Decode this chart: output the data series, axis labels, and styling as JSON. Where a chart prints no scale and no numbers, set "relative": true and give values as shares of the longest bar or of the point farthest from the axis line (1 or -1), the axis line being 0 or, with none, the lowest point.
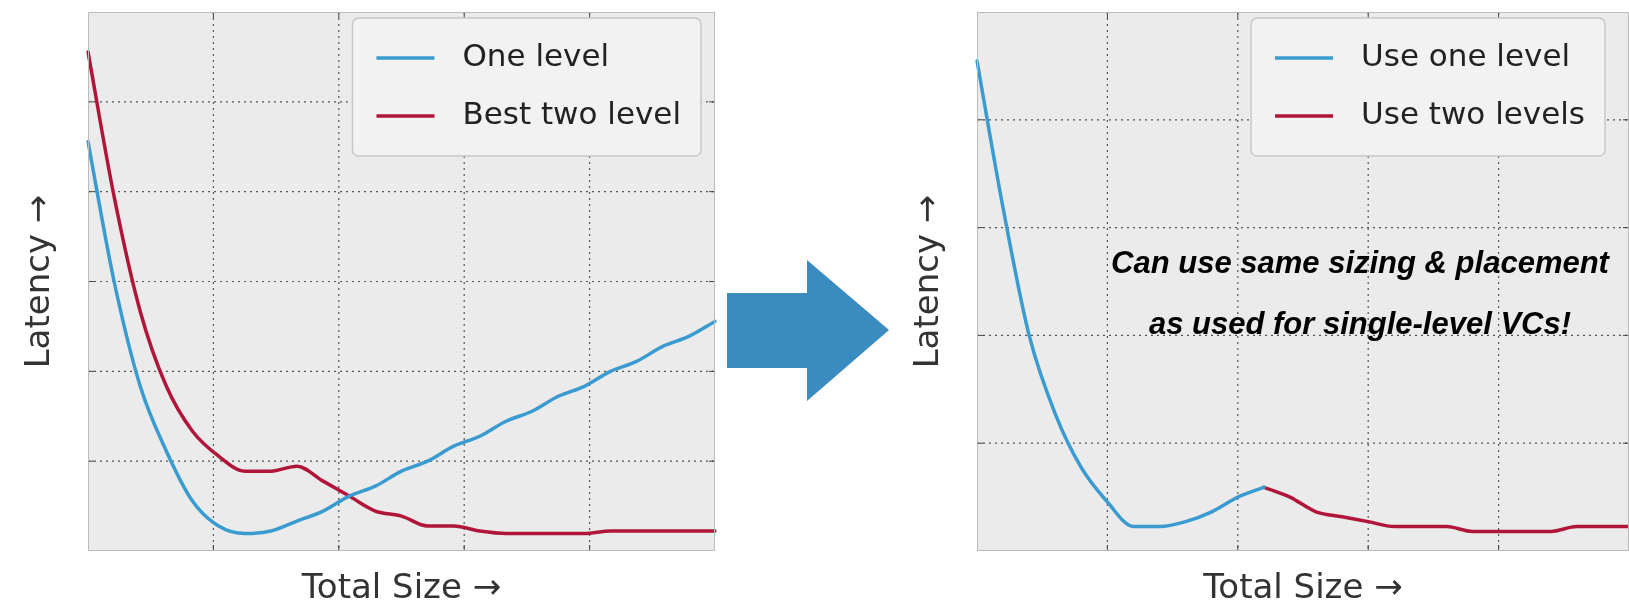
{
  "chart_data": [
    {
      "type": "line",
      "xlabel": "Total Size →",
      "ylabel": "Latency →",
      "relative": true,
      "grid": true,
      "legend": "top right",
      "categories": [
        null,
        null,
        null,
        null,
        null,
        null,
        null,
        null,
        null,
        null,
        null,
        null,
        null,
        null,
        null,
        null,
        null,
        null,
        null,
        null,
        null,
        null,
        null,
        null,
        null
      ],
      "series": [
        {
          "name": "One level",
          "color": "#3a9bd0",
          "values": [
            0.82,
            0.54,
            0.33,
            0.2,
            0.1,
            0.05,
            0.035,
            0.04,
            0.06,
            0.08,
            0.11,
            0.13,
            0.16,
            0.18,
            0.21,
            0.23,
            0.26,
            0.28,
            0.31,
            0.33,
            0.36,
            0.38,
            0.41,
            0.43,
            0.46
          ]
        },
        {
          "name": "Best two level",
          "color": "#b0153a",
          "values": [
            1,
            0.71,
            0.48,
            0.33,
            0.24,
            0.19,
            0.16,
            0.16,
            0.17,
            0.14,
            0.11,
            0.08,
            0.07,
            0.05,
            0.05,
            0.04,
            0.035,
            0.035,
            0.035,
            0.035,
            0.04,
            0.04,
            0.04,
            0.04,
            0.04
          ]
        }
      ]
    },
    {
      "type": "line",
      "xlabel": "Total Size →",
      "ylabel": "Latency →",
      "relative": true,
      "grid": true,
      "legend": "top right",
      "categories": [
        null,
        null,
        null,
        null,
        null,
        null,
        null,
        null,
        null,
        null,
        null,
        null,
        null,
        null,
        null,
        null,
        null,
        null,
        null,
        null,
        null,
        null,
        null,
        null,
        null,
        null
      ],
      "annotations": [
        "Can use same sizing & placement as used for single-level VCs!"
      ],
      "series": [
        {
          "name": "Use one level",
          "color": "#3a9bd0",
          "values": [
            1,
            0.7,
            0.44,
            0.28,
            0.17,
            0.1,
            0.05,
            0.05,
            0.06,
            0.08,
            0.11,
            0.13,
            null,
            null,
            null,
            null,
            null,
            null,
            null,
            null,
            null,
            null,
            null,
            null,
            null,
            null
          ]
        },
        {
          "name": "Use two levels",
          "color": "#b0153a",
          "values": [
            null,
            null,
            null,
            null,
            null,
            null,
            null,
            null,
            null,
            null,
            null,
            0.13,
            0.11,
            0.08,
            0.07,
            0.06,
            0.05,
            0.05,
            0.05,
            0.04,
            0.04,
            0.04,
            0.04,
            0.05,
            0.05,
            0.05
          ]
        }
      ]
    }
  ]
}
